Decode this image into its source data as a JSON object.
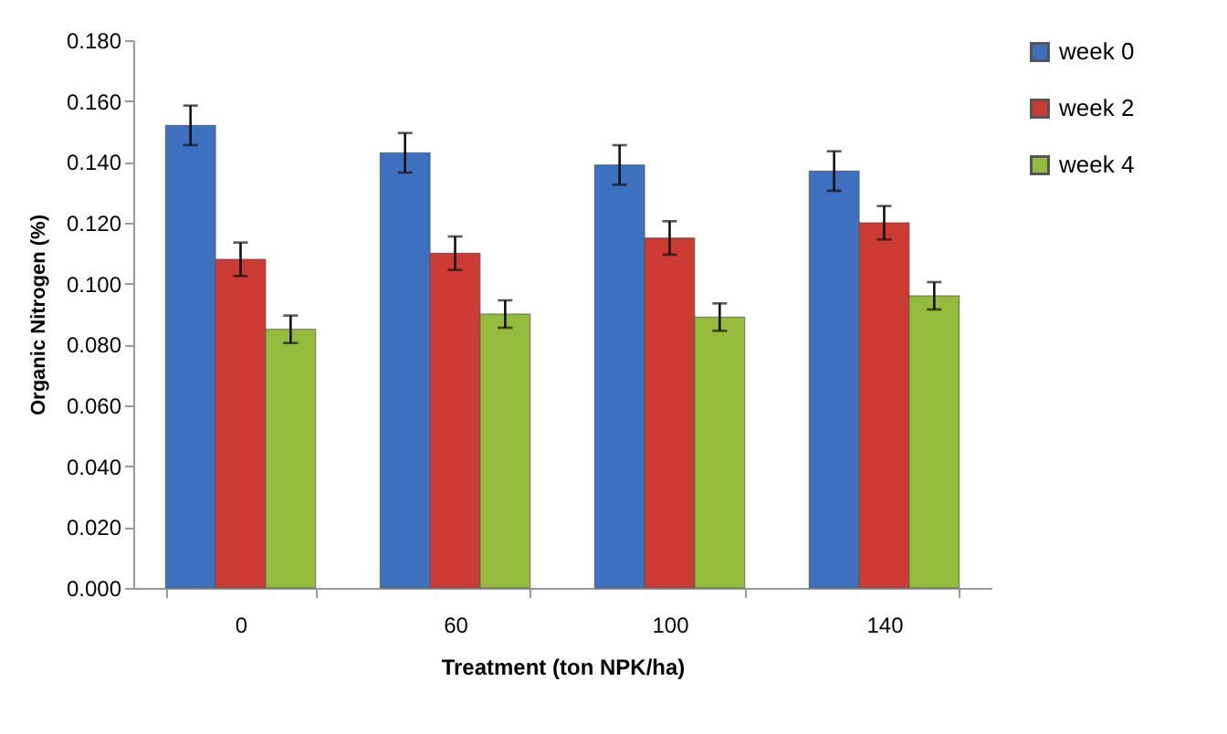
{
  "chart_data": {
    "type": "bar",
    "xlabel": "Treatment (ton NPK/ha)",
    "ylabel": "Organic Nitrogen (%)",
    "categories": [
      "0",
      "60",
      "100",
      "140"
    ],
    "series": [
      {
        "name": "week 0",
        "color": "#3d71c0",
        "values": [
          0.152,
          0.143,
          0.139,
          0.137
        ],
        "errors": [
          0.0065,
          0.0065,
          0.0065,
          0.0065
        ]
      },
      {
        "name": "week 2",
        "color": "#cc3a34",
        "values": [
          0.108,
          0.11,
          0.115,
          0.12
        ],
        "errors": [
          0.0055,
          0.0055,
          0.0055,
          0.0055
        ]
      },
      {
        "name": "week 4",
        "color": "#95bb3c",
        "values": [
          0.085,
          0.09,
          0.089,
          0.096
        ],
        "errors": [
          0.0045,
          0.0045,
          0.0045,
          0.0045
        ]
      }
    ],
    "ylim": [
      0,
      0.18
    ],
    "yticks": [
      {
        "value": 0,
        "label": "0.000"
      },
      {
        "value": 0.02,
        "label": "0.020"
      },
      {
        "value": 0.04,
        "label": "0.040"
      },
      {
        "value": 0.06,
        "label": "0.060"
      },
      {
        "value": 0.08,
        "label": "0.080"
      },
      {
        "value": 0.1,
        "label": "0.100"
      },
      {
        "value": 0.12,
        "label": "0.120"
      },
      {
        "value": 0.14,
        "label": "0.140"
      },
      {
        "value": 0.16,
        "label": "0.160"
      },
      {
        "value": 0.18,
        "label": "0.180"
      }
    ],
    "grid": false,
    "legend": "right"
  }
}
